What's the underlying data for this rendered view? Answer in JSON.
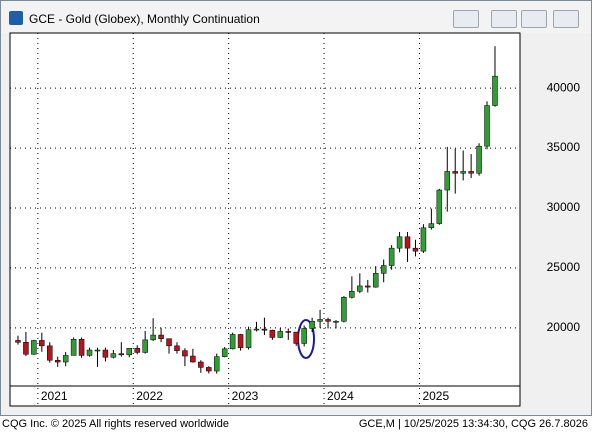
{
  "window_title": "GCE - Gold (Globex), Monthly Continuation",
  "footer": {
    "left": "CQG Inc. © 2025 All rights reserved worldwide",
    "right": "GCE,M | 10/25/2025 13:34:30, CQG 26.7.8026"
  },
  "chart_data": {
    "type": "candlestick",
    "categories": [
      null,
      null,
      null,
      "2021",
      null,
      null,
      null,
      null,
      null,
      null,
      null,
      null,
      null,
      null,
      null,
      "2022",
      null,
      null,
      null,
      null,
      null,
      null,
      null,
      null,
      null,
      null,
      null,
      "2023",
      null,
      null,
      null,
      null,
      null,
      null,
      null,
      null,
      null,
      null,
      null,
      "2024",
      null,
      null,
      null,
      null,
      null,
      null,
      null,
      null,
      null,
      null,
      null,
      "2025",
      null,
      null,
      null,
      null,
      null,
      null,
      null,
      null,
      null
    ],
    "open": [
      18950,
      18800,
      17800,
      18950,
      18500,
      17300,
      17150,
      17700,
      19050,
      17700,
      18150,
      18150,
      17550,
      17850,
      17750,
      18300,
      17950,
      19000,
      19400,
      19100,
      18500,
      18100,
      17650,
      17150,
      16700,
      16400,
      17600,
      18250,
      19450,
      18350,
      19850,
      19900,
      19800,
      19200,
      19700,
      19650,
      18700,
      19950,
      20550,
      20700,
      20550,
      20550,
      22550,
      23050,
      23500,
      23400,
      24550,
      25200,
      26650,
      27600,
      26650,
      26400,
      28350,
      28700,
      31500,
      33050,
      32900,
      33050,
      32900,
      35160,
      38550
    ],
    "high": [
      19350,
      19660,
      19000,
      19600,
      18800,
      17600,
      17980,
      19200,
      19200,
      18350,
      18350,
      18350,
      18150,
      18800,
      18300,
      18550,
      19750,
      20800,
      20000,
      19100,
      18800,
      18300,
      18250,
      17300,
      16800,
      17850,
      18400,
      19600,
      19500,
      20100,
      20500,
      20850,
      19850,
      20000,
      19950,
      19650,
      20200,
      20850,
      21500,
      20850,
      20650,
      22650,
      24300,
      24550,
      24000,
      25150,
      25700,
      26900,
      28000,
      28000,
      27350,
      28650,
      29950,
      31600,
      35100,
      34950,
      34800,
      34500,
      35400,
      38900,
      43500
    ],
    "low": [
      18600,
      17640,
      17750,
      18000,
      17100,
      16750,
      16800,
      17700,
      17500,
      17600,
      16750,
      17200,
      17450,
      17600,
      17550,
      17800,
      17850,
      18900,
      18800,
      17850,
      17850,
      16800,
      17100,
      16250,
      16200,
      16180,
      17550,
      18200,
      18100,
      18200,
      19700,
      19400,
      19000,
      19150,
      19000,
      18500,
      18450,
      19650,
      20000,
      19950,
      19950,
      20450,
      22450,
      22900,
      22950,
      23350,
      23800,
      24850,
      26300,
      25500,
      25960,
      26250,
      28200,
      28600,
      29700,
      31200,
      32300,
      32500,
      32700,
      34900,
      38450
    ],
    "close": [
      18800,
      17800,
      18950,
      18500,
      17300,
      17150,
      17700,
      19050,
      17700,
      18150,
      18150,
      17550,
      17850,
      17750,
      18300,
      17950,
      19000,
      19400,
      19100,
      18500,
      18100,
      17650,
      17150,
      16700,
      16400,
      17600,
      18250,
      19450,
      18350,
      19850,
      19900,
      19800,
      19200,
      19700,
      19650,
      18700,
      19950,
      20550,
      20700,
      20550,
      20550,
      22550,
      23050,
      23500,
      23400,
      24550,
      25200,
      26650,
      27600,
      26650,
      26400,
      28350,
      28700,
      31500,
      33050,
      32900,
      33050,
      32900,
      35160,
      38550,
      41000
    ],
    "up_color": "#2e9e35",
    "down_color": "#b8141e",
    "ylim": [
      15150,
      44600
    ],
    "yticks": [
      20000,
      25000,
      30000,
      35000,
      40000
    ],
    "grid": true
  }
}
